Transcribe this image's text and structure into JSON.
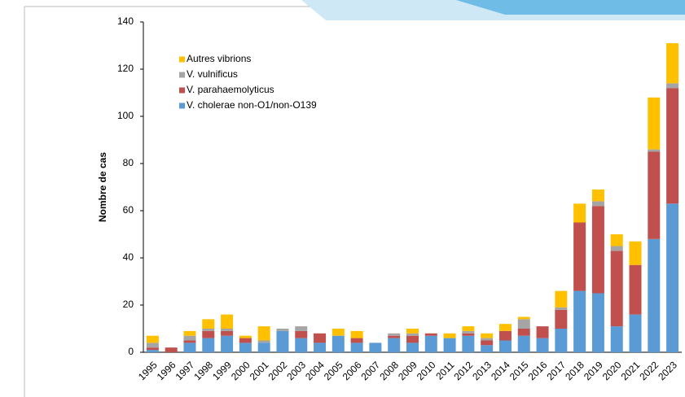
{
  "chart_data": {
    "type": "stacked_bar",
    "y_label": "Nombre de cas",
    "categories": [
      "1995",
      "1996",
      "1997",
      "1998",
      "1999",
      "2000",
      "2001",
      "2002",
      "2003",
      "2004",
      "2005",
      "2006",
      "2007",
      "2008",
      "2009",
      "2010",
      "2011",
      "2012",
      "2013",
      "2014",
      "2015",
      "2016",
      "2017",
      "2018",
      "2019",
      "2020",
      "2021",
      "2022",
      "2023"
    ],
    "series": [
      {
        "name": "V. cholerae non-O1/non-O139",
        "color": "#5b9bd5",
        "values": [
          1,
          0,
          4,
          6,
          7,
          4,
          4,
          9,
          6,
          4,
          7,
          4,
          4,
          6,
          4,
          7,
          6,
          7,
          3,
          5,
          7,
          6,
          10,
          26,
          25,
          11,
          16,
          48,
          63
        ]
      },
      {
        "name": "V. parahaemolyticus",
        "color": "#c0504d",
        "values": [
          1,
          2,
          1,
          3,
          2,
          2,
          0,
          0,
          3,
          4,
          0,
          2,
          0,
          1,
          3,
          1,
          0,
          1,
          2,
          4,
          3,
          5,
          8,
          29,
          37,
          32,
          21,
          37,
          49
        ]
      },
      {
        "name": "V. vulnificus",
        "color": "#a5a5a5",
        "values": [
          2,
          0,
          2,
          1,
          1,
          0,
          1,
          1,
          2,
          0,
          0,
          0,
          0,
          1,
          1,
          0,
          0,
          1,
          1,
          0,
          4,
          0,
          1,
          0,
          2,
          2,
          0,
          1,
          2
        ]
      },
      {
        "name": "Autres vibrions",
        "color": "#ffc000",
        "values": [
          3,
          0,
          2,
          4,
          6,
          1,
          6,
          0,
          0,
          0,
          3,
          3,
          0,
          0,
          2,
          0,
          2,
          2,
          2,
          3,
          1,
          0,
          7,
          8,
          5,
          5,
          10,
          22,
          17
        ]
      }
    ],
    "ylim": [
      0,
      140
    ],
    "yticks": [
      0,
      20,
      40,
      60,
      80,
      100,
      120,
      140
    ]
  }
}
